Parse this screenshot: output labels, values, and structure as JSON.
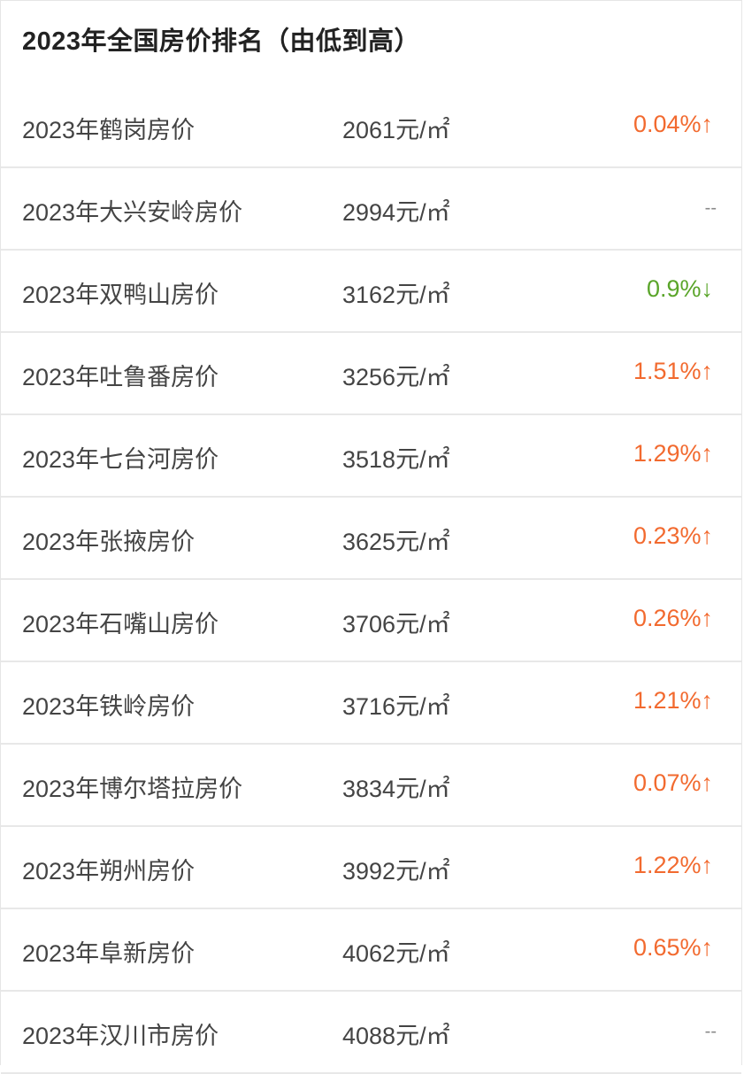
{
  "title": "2023年全国房价排名（由低到高）",
  "colors": {
    "up": "#f26a2f",
    "down": "#5aa52a",
    "none": "#888888"
  },
  "rows": [
    {
      "name": "2023年鹤岗房价",
      "price": "2061元/㎡",
      "change": "0.04%↑",
      "trend": "up"
    },
    {
      "name": "2023年大兴安岭房价",
      "price": "2994元/㎡",
      "change": "--",
      "trend": "none"
    },
    {
      "name": "2023年双鸭山房价",
      "price": "3162元/㎡",
      "change": "0.9%↓",
      "trend": "down"
    },
    {
      "name": "2023年吐鲁番房价",
      "price": "3256元/㎡",
      "change": "1.51%↑",
      "trend": "up"
    },
    {
      "name": "2023年七台河房价",
      "price": "3518元/㎡",
      "change": "1.29%↑",
      "trend": "up"
    },
    {
      "name": "2023年张掖房价",
      "price": "3625元/㎡",
      "change": "0.23%↑",
      "trend": "up"
    },
    {
      "name": "2023年石嘴山房价",
      "price": "3706元/㎡",
      "change": "0.26%↑",
      "trend": "up"
    },
    {
      "name": "2023年铁岭房价",
      "price": "3716元/㎡",
      "change": "1.21%↑",
      "trend": "up"
    },
    {
      "name": "2023年博尔塔拉房价",
      "price": "3834元/㎡",
      "change": "0.07%↑",
      "trend": "up"
    },
    {
      "name": "2023年朔州房价",
      "price": "3992元/㎡",
      "change": "1.22%↑",
      "trend": "up"
    },
    {
      "name": "2023年阜新房价",
      "price": "4062元/㎡",
      "change": "0.65%↑",
      "trend": "up"
    },
    {
      "name": "2023年汉川市房价",
      "price": "4088元/㎡",
      "change": "--",
      "trend": "none"
    }
  ]
}
